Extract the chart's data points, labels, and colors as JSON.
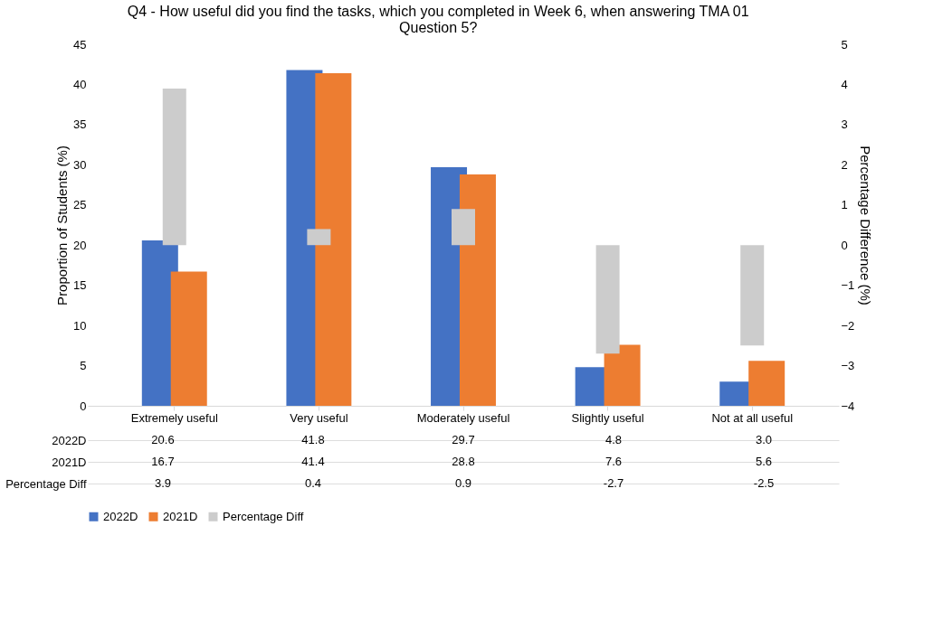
{
  "chart_data": {
    "type": "bar",
    "title": "Q4 - How useful did you find the tasks, which you completed in Week 6, when answering TMA 01 Question 5?",
    "ylabel": "Proportion of Students (%)",
    "y2label": "Percentage Difference (%)",
    "categories": [
      "Extremely useful",
      "Very useful",
      "Moderately useful",
      "Slightly useful",
      "Not at all useful"
    ],
    "series": [
      {
        "name": "2022D",
        "color": "#4472c4",
        "values": [
          20.6,
          41.8,
          29.7,
          4.8,
          3.0
        ],
        "value_labels": [
          "20.6",
          "41.8",
          "29.7",
          "4.8",
          "3.0"
        ]
      },
      {
        "name": "2021D",
        "color": "#ed7d31",
        "values": [
          16.7,
          41.4,
          28.8,
          7.6,
          5.6
        ],
        "value_labels": [
          "16.7",
          "41.4",
          "28.8",
          "7.6",
          "5.6"
        ]
      },
      {
        "name": "Percentage Diff",
        "color": "#cccccc",
        "axis": "y2",
        "values": [
          3.9,
          0.4,
          0.9,
          -2.7,
          -2.5
        ],
        "value_labels": [
          "3.9",
          "0.4",
          "0.9",
          "-2.7",
          "-2.5"
        ]
      }
    ],
    "ylim": [
      0,
      45
    ],
    "yticks": [
      0,
      5,
      10,
      15,
      20,
      25,
      30,
      35,
      40,
      45
    ],
    "y2lim": [
      -4,
      5
    ],
    "y2ticks": [
      -4,
      -3,
      -2,
      -1,
      0,
      1,
      2,
      3,
      4,
      5
    ],
    "grid": false,
    "legend": "bottom"
  }
}
